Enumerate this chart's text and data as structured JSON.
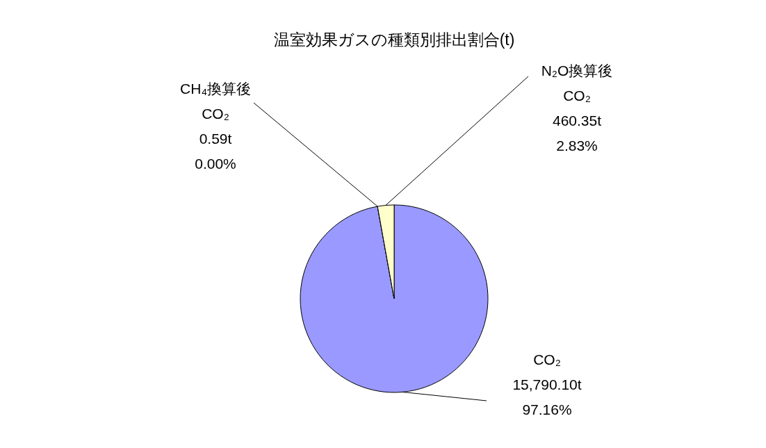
{
  "chart_data": {
    "type": "pie",
    "title": "温室効果ガスの種類別排出割合(t)",
    "categories": [
      "CO₂",
      "CH₄換算後\nCO₂",
      "N₂O換算後\nCO₂"
    ],
    "values": [
      15790.1,
      0.59,
      460.35
    ],
    "value_labels": [
      "15,790.10t",
      "0.59t",
      "460.35t"
    ],
    "annotations": [
      "97.16%",
      "0.00%",
      "2.83%"
    ],
    "colors": [
      "#9999ff",
      "#993366",
      "#ffffcc"
    ],
    "legend": false
  }
}
